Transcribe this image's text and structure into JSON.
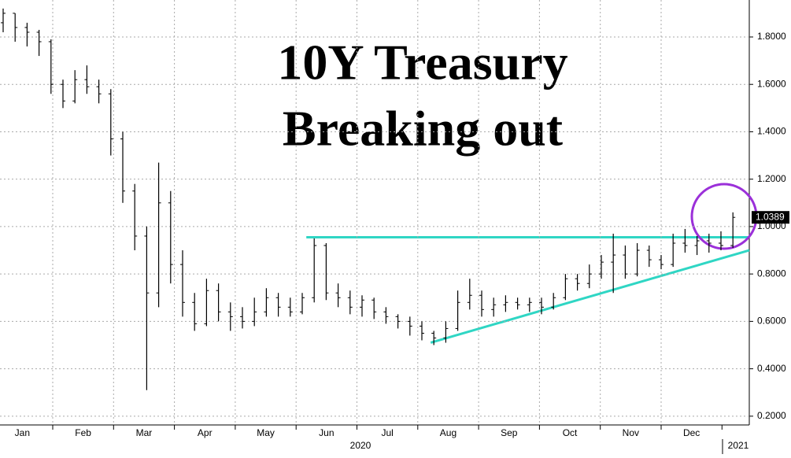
{
  "chart_data": {
    "type": "ohlc",
    "title": [
      "10Y Treasury",
      "Breaking out"
    ],
    "categories": [
      "Jan",
      "Feb",
      "Mar",
      "Apr",
      "May",
      "Jun",
      "Jul",
      "Aug",
      "Sep",
      "Oct",
      "Nov",
      "Dec"
    ],
    "years": [
      "2020",
      "2021"
    ],
    "series": [
      {
        "color": "#000000",
        "open": [
          1.86,
          1.9,
          1.84,
          1.82,
          1.78,
          1.6,
          1.53,
          1.62,
          1.59,
          1.56,
          1.37,
          1.15,
          0.96,
          0.72,
          1.1,
          0.84,
          0.68,
          0.59,
          0.73,
          0.64,
          0.62,
          0.6,
          0.64,
          0.7,
          0.66,
          0.64,
          0.7,
          0.92,
          0.72,
          0.7,
          0.66,
          0.69,
          0.64,
          0.62,
          0.6,
          0.58,
          0.55,
          0.53,
          0.57,
          0.68,
          0.71,
          0.65,
          0.67,
          0.68,
          0.67,
          0.68,
          0.66,
          0.7,
          0.78,
          0.76,
          0.8,
          0.85,
          0.88,
          0.8,
          0.9,
          0.86,
          0.84,
          0.93,
          0.92,
          0.94,
          0.93,
          0.92
        ],
        "high": [
          1.92,
          1.9,
          1.86,
          1.83,
          1.79,
          1.62,
          1.66,
          1.68,
          1.62,
          1.58,
          1.4,
          1.18,
          1.0,
          1.27,
          1.15,
          0.9,
          0.72,
          0.78,
          0.76,
          0.68,
          0.66,
          0.7,
          0.74,
          0.72,
          0.7,
          0.72,
          0.95,
          0.93,
          0.76,
          0.73,
          0.71,
          0.7,
          0.66,
          0.63,
          0.62,
          0.6,
          0.56,
          0.6,
          0.73,
          0.78,
          0.73,
          0.7,
          0.71,
          0.7,
          0.7,
          0.7,
          0.72,
          0.8,
          0.8,
          0.84,
          0.88,
          0.97,
          0.92,
          0.93,
          0.92,
          0.88,
          0.97,
          0.99,
          0.96,
          0.97,
          0.98,
          1.06
        ],
        "low": [
          1.82,
          1.78,
          1.76,
          1.72,
          1.56,
          1.5,
          1.52,
          1.56,
          1.52,
          1.3,
          1.1,
          0.9,
          0.31,
          0.66,
          0.76,
          0.62,
          0.56,
          0.58,
          0.6,
          0.56,
          0.57,
          0.58,
          0.62,
          0.62,
          0.62,
          0.63,
          0.68,
          0.69,
          0.66,
          0.63,
          0.62,
          0.61,
          0.59,
          0.57,
          0.54,
          0.52,
          0.5,
          0.51,
          0.56,
          0.65,
          0.62,
          0.62,
          0.64,
          0.65,
          0.64,
          0.63,
          0.65,
          0.69,
          0.73,
          0.74,
          0.78,
          0.72,
          0.78,
          0.79,
          0.83,
          0.82,
          0.83,
          0.89,
          0.88,
          0.89,
          0.9,
          0.91
        ],
        "close": [
          1.9,
          1.84,
          1.82,
          1.78,
          1.6,
          1.53,
          1.62,
          1.59,
          1.56,
          1.37,
          1.15,
          0.96,
          0.72,
          1.1,
          0.84,
          0.68,
          0.59,
          0.73,
          0.64,
          0.62,
          0.6,
          0.64,
          0.7,
          0.66,
          0.64,
          0.7,
          0.92,
          0.72,
          0.7,
          0.66,
          0.69,
          0.64,
          0.62,
          0.6,
          0.58,
          0.55,
          0.53,
          0.57,
          0.68,
          0.71,
          0.65,
          0.67,
          0.68,
          0.67,
          0.68,
          0.66,
          0.7,
          0.78,
          0.76,
          0.8,
          0.85,
          0.88,
          0.8,
          0.9,
          0.86,
          0.84,
          0.93,
          0.92,
          0.94,
          0.93,
          0.92,
          1.0389
        ]
      }
    ],
    "ylim": [
      0.163,
      1.956
    ],
    "yticks": [
      {
        "value": 0.2,
        "label": "0.2000"
      },
      {
        "value": 0.4,
        "label": "0.4000"
      },
      {
        "value": 0.6,
        "label": "0.6000"
      },
      {
        "value": 0.8,
        "label": "0.8000"
      },
      {
        "value": 1.0,
        "label": "1.0000"
      },
      {
        "value": 1.2,
        "label": "1.2000"
      },
      {
        "value": 1.4,
        "label": "1.4000"
      },
      {
        "value": 1.6,
        "label": "1.6000"
      },
      {
        "value": 1.8,
        "label": "1.8000"
      }
    ],
    "grid": true,
    "resistance": 0.955,
    "support": [
      0.51,
      0.9
    ],
    "trendline_color": "#2fd6c4"
  }
}
